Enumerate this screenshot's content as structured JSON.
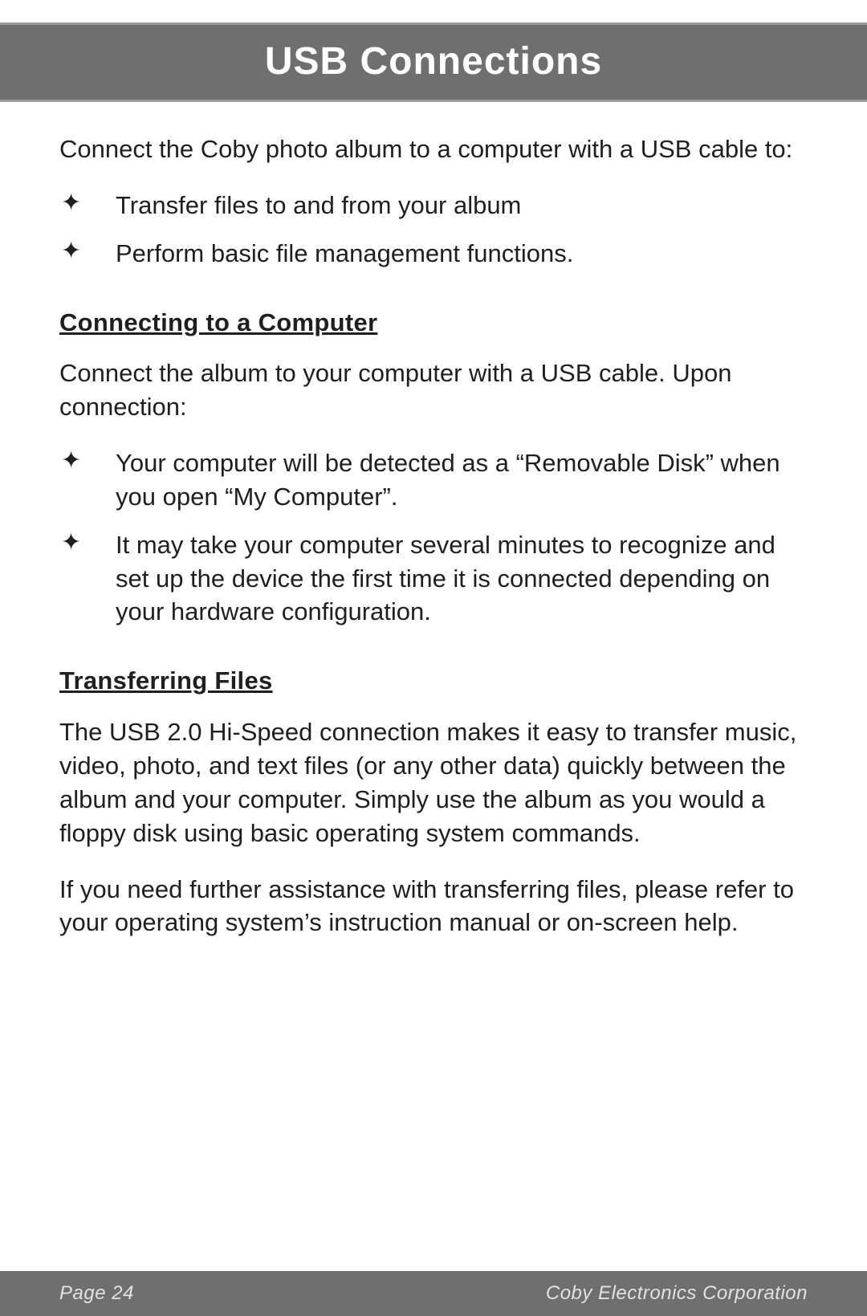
{
  "header": {
    "title": "USB Connections"
  },
  "intro": "Connect the Coby photo album to a computer with a USB cable to:",
  "intro_bullets": [
    "Transfer files to and from your album",
    "Perform basic file management functions."
  ],
  "section1": {
    "heading": "Connecting to a Computer",
    "para": "Connect the album to your computer with a USB cable. Upon connection:",
    "bullets": [
      "Your computer will be detected as a “Removable Disk” when you open “My Computer”.",
      "It may take your computer several minutes to recognize and set up the device the first time it is connected depending on your hardware configuration."
    ]
  },
  "section2": {
    "heading": "Transferring Files",
    "para1": "The USB 2.0 Hi-Speed connection makes it easy to transfer music, video, photo, and text files (or any other data) quickly between the album and your computer. Simply use the album as you would a floppy disk using basic operating system commands.",
    "para2": "If you need further assistance with transferring files, please refer to your operating system’s instruction manual or on-screen help."
  },
  "footer": {
    "left": "Page 24",
    "right": "Coby Electronics Corporation"
  },
  "bullet_glyph": "✦"
}
